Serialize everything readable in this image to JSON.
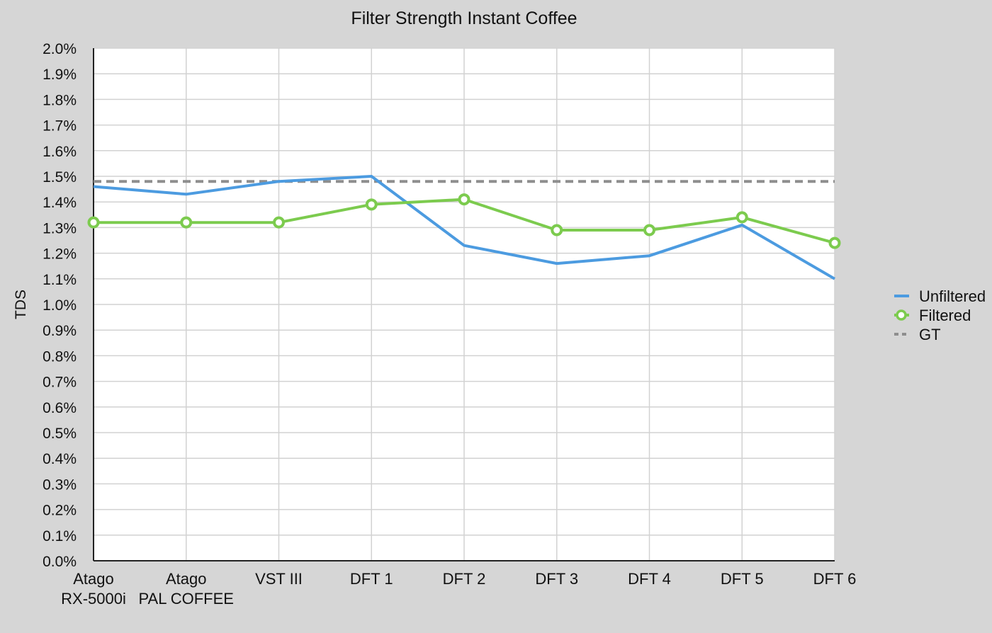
{
  "chart_data": {
    "type": "line",
    "title": "Filter Strength Instant Coffee",
    "xlabel": "",
    "ylabel": "TDS",
    "ylim": [
      0,
      2.0
    ],
    "ytick_step": 0.1,
    "ytick_suffix": "%",
    "grid": true,
    "legend": "right",
    "categories": [
      [
        "Atago",
        "RX-5000i"
      ],
      [
        "Atago",
        "PAL COFFEE"
      ],
      [
        "VST III"
      ],
      [
        "DFT 1"
      ],
      [
        "DFT 2"
      ],
      [
        "DFT 3"
      ],
      [
        "DFT 4"
      ],
      [
        "DFT 5"
      ],
      [
        "DFT 6"
      ]
    ],
    "series": [
      {
        "name": "Unfiltered",
        "color": "#4c9be0",
        "style": "solid",
        "markers": false,
        "values": [
          1.46,
          1.43,
          1.48,
          1.5,
          1.23,
          1.16,
          1.19,
          1.31,
          1.1
        ]
      },
      {
        "name": "Filtered",
        "color": "#7ccb4e",
        "style": "solid",
        "markers": true,
        "values": [
          1.32,
          1.32,
          1.32,
          1.39,
          1.41,
          1.29,
          1.29,
          1.34,
          1.24
        ]
      },
      {
        "name": "GT",
        "color": "#8e8e8e",
        "style": "dashed",
        "markers": false,
        "values": [
          1.48,
          1.48,
          1.48,
          1.48,
          1.48,
          1.48,
          1.48,
          1.48,
          1.48
        ]
      }
    ]
  }
}
